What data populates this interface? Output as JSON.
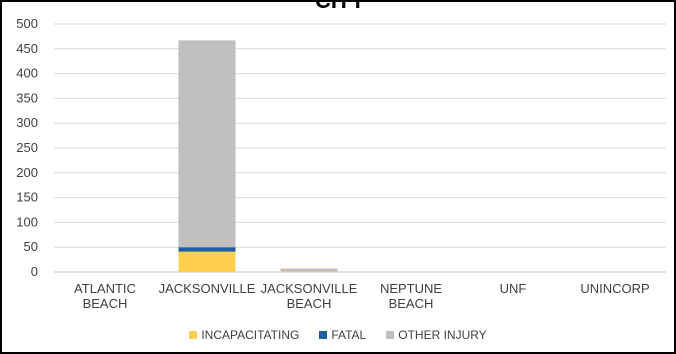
{
  "chart_data": {
    "type": "bar",
    "stacked": true,
    "title": "CITY",
    "categories": [
      [
        "ATLANTIC",
        "BEACH"
      ],
      [
        "JACKSONVILLE"
      ],
      [
        "JACKSONVILLE",
        "BEACH"
      ],
      [
        "NEPTUNE",
        "BEACH"
      ],
      [
        "UNF"
      ],
      [
        "UNINCORP"
      ]
    ],
    "series": [
      {
        "name": "INCAPACITATING",
        "color": "#FFD04F",
        "values": [
          0,
          41,
          1,
          0,
          0,
          0
        ]
      },
      {
        "name": "FATAL",
        "color": "#1F5F9E",
        "values": [
          0,
          9,
          0,
          0,
          0,
          0
        ]
      },
      {
        "name": "OTHER INJURY",
        "color": "#BFBFBF",
        "values": [
          0,
          417,
          6,
          0,
          0,
          0
        ]
      }
    ],
    "ylim": [
      0,
      500
    ],
    "yticks": [
      0,
      50,
      100,
      150,
      200,
      250,
      300,
      350,
      400,
      450,
      500
    ],
    "grid": true,
    "legend_position": "bottom"
  }
}
